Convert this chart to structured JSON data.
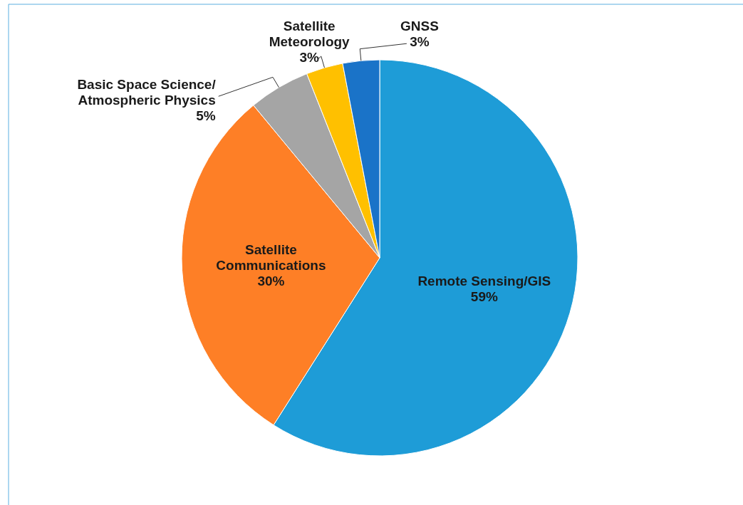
{
  "chart_data": {
    "type": "pie",
    "categories": [
      "Remote Sensing/GIS",
      "Satellite\nCommunications",
      "Basic Space Science/\nAtmospheric Physics",
      "Satellite\nMeteorology",
      "GNSS"
    ],
    "values": [
      59,
      30,
      5,
      3,
      3
    ],
    "colors": [
      "#1e9cd7",
      "#fe7f26",
      "#a5a5a5",
      "#ffc000",
      "#1a73c8"
    ],
    "value_labels": [
      "59%",
      "30%",
      "5%",
      "3%",
      "3%"
    ],
    "legend": false
  }
}
